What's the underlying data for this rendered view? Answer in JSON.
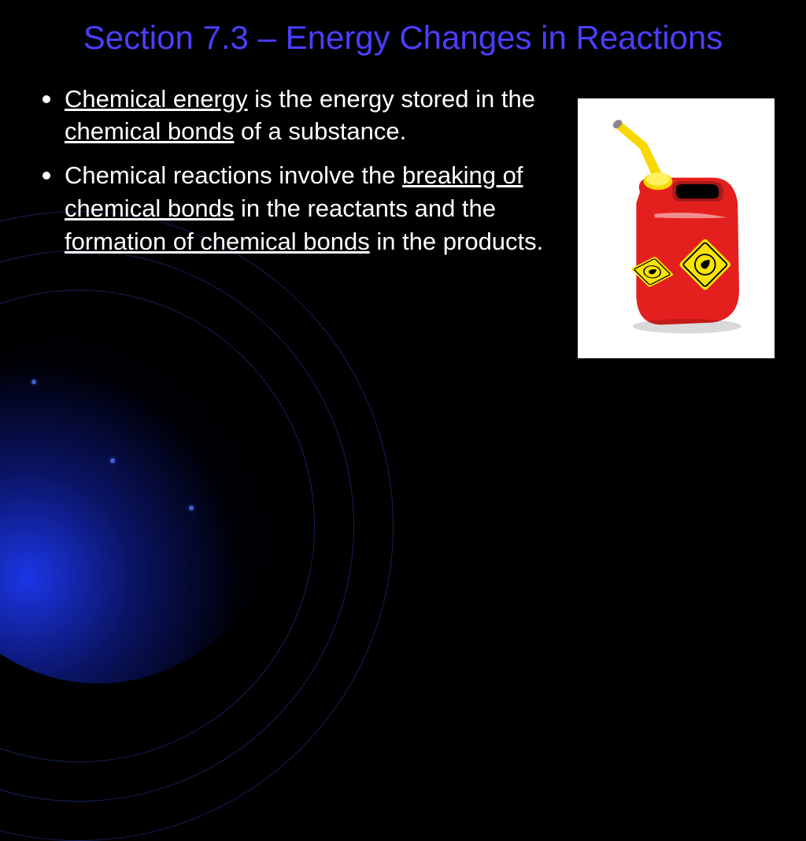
{
  "slide": {
    "title": "Section 7.3 – Energy Changes in Reactions",
    "bullets": [
      {
        "segments": [
          {
            "text": "Chemical energy",
            "underline": true
          },
          {
            "text": " is the energy stored in the ",
            "underline": false
          },
          {
            "text": "chemical bonds",
            "underline": true
          },
          {
            "text": " of a substance.",
            "underline": false
          }
        ]
      },
      {
        "segments": [
          {
            "text": "Chemical reactions involve the ",
            "underline": false
          },
          {
            "text": "breaking of chemical bonds",
            "underline": true
          },
          {
            "text": " in the reactants and the ",
            "underline": false
          },
          {
            "text": "formation of chemical bonds",
            "underline": true
          },
          {
            "text": " in the products.",
            "underline": false
          }
        ]
      }
    ],
    "image": {
      "name": "gas-can-illustration",
      "colors": {
        "can_body": "#e4201f",
        "spout": "#f8d800",
        "cap": "#f8d800",
        "hazard_diamond": "#f8e400",
        "spout_tip": "#888888"
      }
    },
    "style": {
      "title_color": "#4b3fff",
      "text_color": "#ffffff",
      "background_color": "#000000",
      "accent_glow": "#2040ff",
      "title_fontsize": 42,
      "body_fontsize": 31
    }
  }
}
